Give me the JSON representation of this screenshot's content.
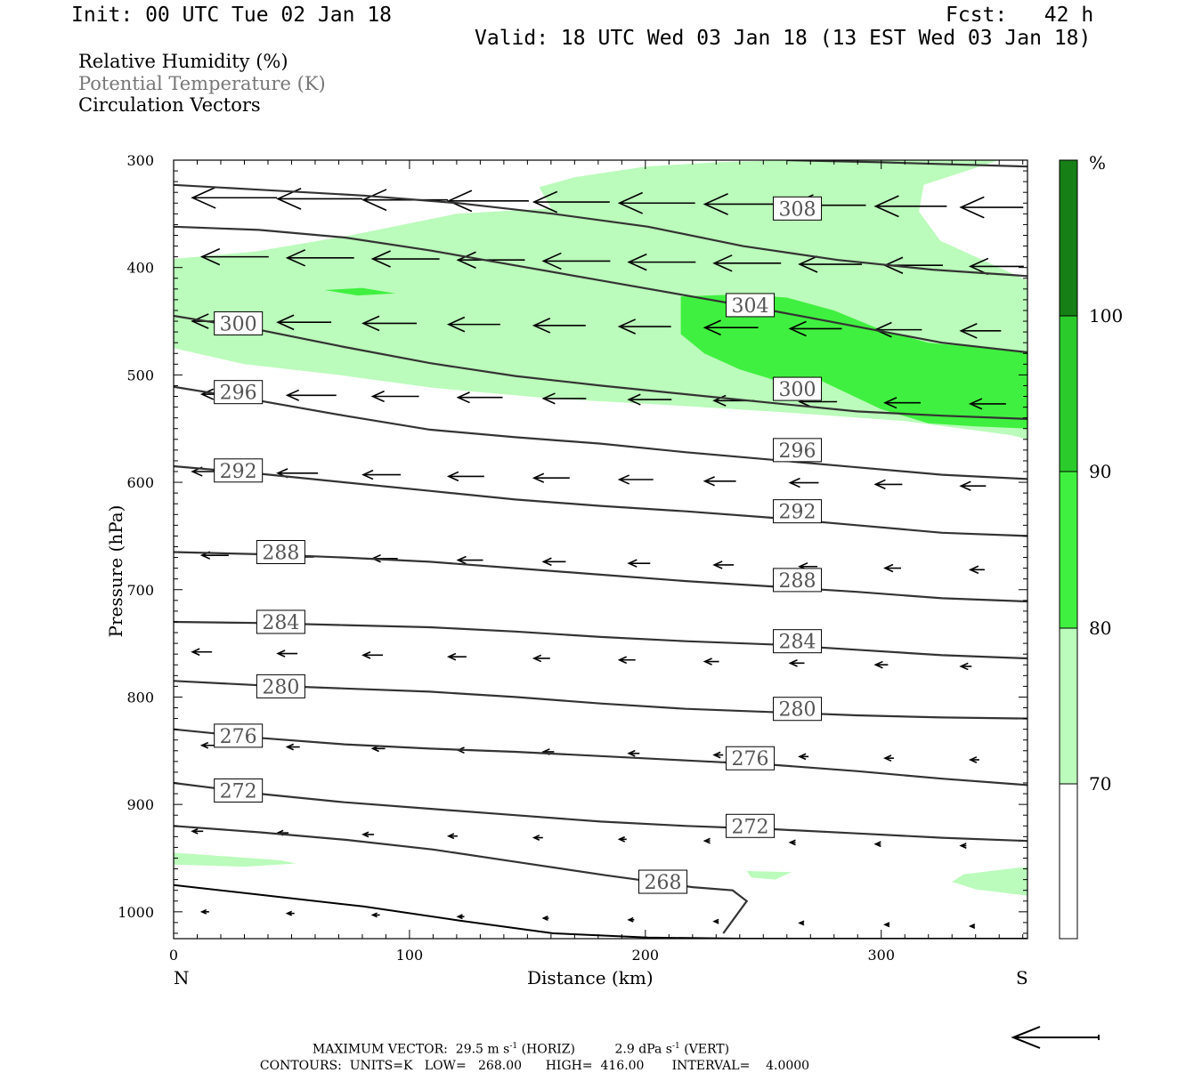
{
  "header": {
    "init": "Init: 00 UTC Tue 02 Jan 18",
    "fcst": "Fcst:   42 h",
    "valid": "Valid: 18 UTC Wed 03 Jan 18 (13 EST Wed 03 Jan 18)"
  },
  "legend": {
    "rh": "Relative Humidity (%)",
    "theta": "Potential Temperature (K)",
    "vectors": "Circulation Vectors"
  },
  "colors": {
    "rh70": "#bbfbbb",
    "rh80": "#40f040",
    "rh90": "#2ccb2c",
    "rh100": "#167f16",
    "contour": "#333333",
    "theta_text": "#555555"
  },
  "chart_data": {
    "type": "cross-section",
    "xlabel": "Distance (km)",
    "ylabel": "Pressure (hPa)",
    "xlim": [
      0,
      362
    ],
    "ylim": [
      1025,
      300
    ],
    "xticks": [
      "0",
      "100",
      "200",
      "300"
    ],
    "yticks": [
      "300",
      "400",
      "500",
      "600",
      "700",
      "800",
      "900",
      "1000"
    ],
    "left_end": "N",
    "right_end": "S",
    "colorbar": {
      "unit": "%",
      "levels": [
        "70",
        "80",
        "90",
        "100"
      ]
    },
    "theta_isentropes": [
      {
        "label": "308",
        "p": [
          323,
          328,
          333,
          340,
          350,
          362,
          380,
          393,
          402,
          408
        ]
      },
      {
        "label": "304",
        "p": [
          362,
          365,
          372,
          384,
          398,
          412,
          426,
          440,
          455,
          470,
          479
        ]
      },
      {
        "label": "300",
        "p": [
          445,
          458,
          474,
          489,
          501,
          510,
          518,
          526,
          534,
          538,
          541
        ]
      },
      {
        "label": "296",
        "p": [
          511,
          524,
          538,
          551,
          558,
          564,
          572,
          579,
          586,
          593,
          597
        ]
      },
      {
        "label": "292",
        "p": [
          585,
          592,
          600,
          608,
          616,
          622,
          627,
          633,
          640,
          647,
          650
        ]
      },
      {
        "label": "288",
        "p": [
          665,
          667,
          670,
          674,
          680,
          686,
          692,
          697,
          702,
          708,
          711
        ]
      },
      {
        "label": "284",
        "p": [
          730,
          731,
          733,
          735,
          739,
          744,
          748,
          751,
          756,
          761,
          764
        ]
      },
      {
        "label": "280",
        "p": [
          785,
          789,
          792,
          795,
          800,
          806,
          811,
          814,
          817,
          819,
          820
        ]
      },
      {
        "label": "276",
        "p": [
          830,
          838,
          844,
          848,
          851,
          855,
          859,
          863,
          869,
          876,
          882
        ]
      },
      {
        "label": "272",
        "p": [
          880,
          890,
          898,
          904,
          910,
          916,
          920,
          923,
          927,
          931,
          934
        ]
      },
      {
        "label": "268",
        "p": [
          920,
          926,
          933,
          942,
          954,
          966,
          977
        ]
      }
    ],
    "surface_pressure_hpa": [
      975,
      985,
      995,
      1008,
      1020,
      1024,
      1025,
      1025,
      1025,
      1025
    ],
    "rh_70_region": "broad band 320-520 hPa across the section, plus shallow patches near 950-970 hPa",
    "rh_80_region": "core near 430-520 hPa from 215 km southward",
    "max_vector": {
      "label": "MAXIMUM VECTOR:",
      "horiz": "29.5 m s",
      "horiz_unit": "(HORIZ)",
      "vert": "2.9 dPa s",
      "vert_unit": "(VERT)",
      "sup": "-1"
    },
    "contours": {
      "label": "CONTOURS:",
      "units": "UNITS=K",
      "low": "LOW=   268.00",
      "high": "HIGH=  416.00",
      "interval": "INTERVAL=    4.0000"
    }
  }
}
